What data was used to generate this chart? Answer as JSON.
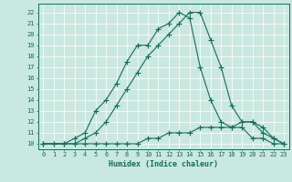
{
  "xlabel": "Humidex (Indice chaleur)",
  "xlim": [
    -0.5,
    23.5
  ],
  "ylim": [
    9.5,
    22.8
  ],
  "xticks": [
    0,
    1,
    2,
    3,
    4,
    5,
    6,
    7,
    8,
    9,
    10,
    11,
    12,
    13,
    14,
    15,
    16,
    17,
    18,
    19,
    20,
    21,
    22,
    23
  ],
  "yticks": [
    10,
    11,
    12,
    13,
    14,
    15,
    16,
    17,
    18,
    19,
    20,
    21,
    22
  ],
  "bg_color": "#c8e8e0",
  "grid_color": "#b0d8d0",
  "line_color": "#1a6b5a",
  "line1_x": [
    0,
    1,
    2,
    3,
    4,
    5,
    6,
    7,
    8,
    9,
    10,
    11,
    12,
    13,
    14,
    15,
    16,
    17,
    18,
    19,
    20,
    21,
    22,
    23
  ],
  "line1_y": [
    10,
    10,
    10,
    10.5,
    11,
    13,
    14,
    15.5,
    17.5,
    19,
    19,
    20.5,
    21,
    22,
    21.5,
    17,
    14,
    12,
    11.5,
    11.5,
    10.5,
    10.5,
    10,
    10
  ],
  "line2_x": [
    0,
    2,
    3,
    4,
    5,
    6,
    7,
    8,
    9,
    10,
    11,
    12,
    13,
    14,
    15,
    16,
    17,
    18,
    19,
    20,
    21,
    22,
    23
  ],
  "line2_y": [
    10,
    10,
    10,
    10.5,
    11,
    12,
    13.5,
    15,
    16.5,
    18,
    19,
    20,
    21,
    22,
    22,
    19.5,
    17,
    13.5,
    12,
    12,
    11.5,
    10.5,
    10
  ],
  "line3_x": [
    0,
    1,
    2,
    3,
    4,
    5,
    6,
    7,
    8,
    9,
    10,
    11,
    12,
    13,
    14,
    15,
    16,
    17,
    18,
    19,
    20,
    21,
    22,
    23
  ],
  "line3_y": [
    10,
    10,
    10,
    10,
    10,
    10,
    10,
    10,
    10,
    10,
    10.5,
    10.5,
    11,
    11,
    11,
    11.5,
    11.5,
    11.5,
    11.5,
    12,
    12,
    11,
    10.5,
    10
  ]
}
